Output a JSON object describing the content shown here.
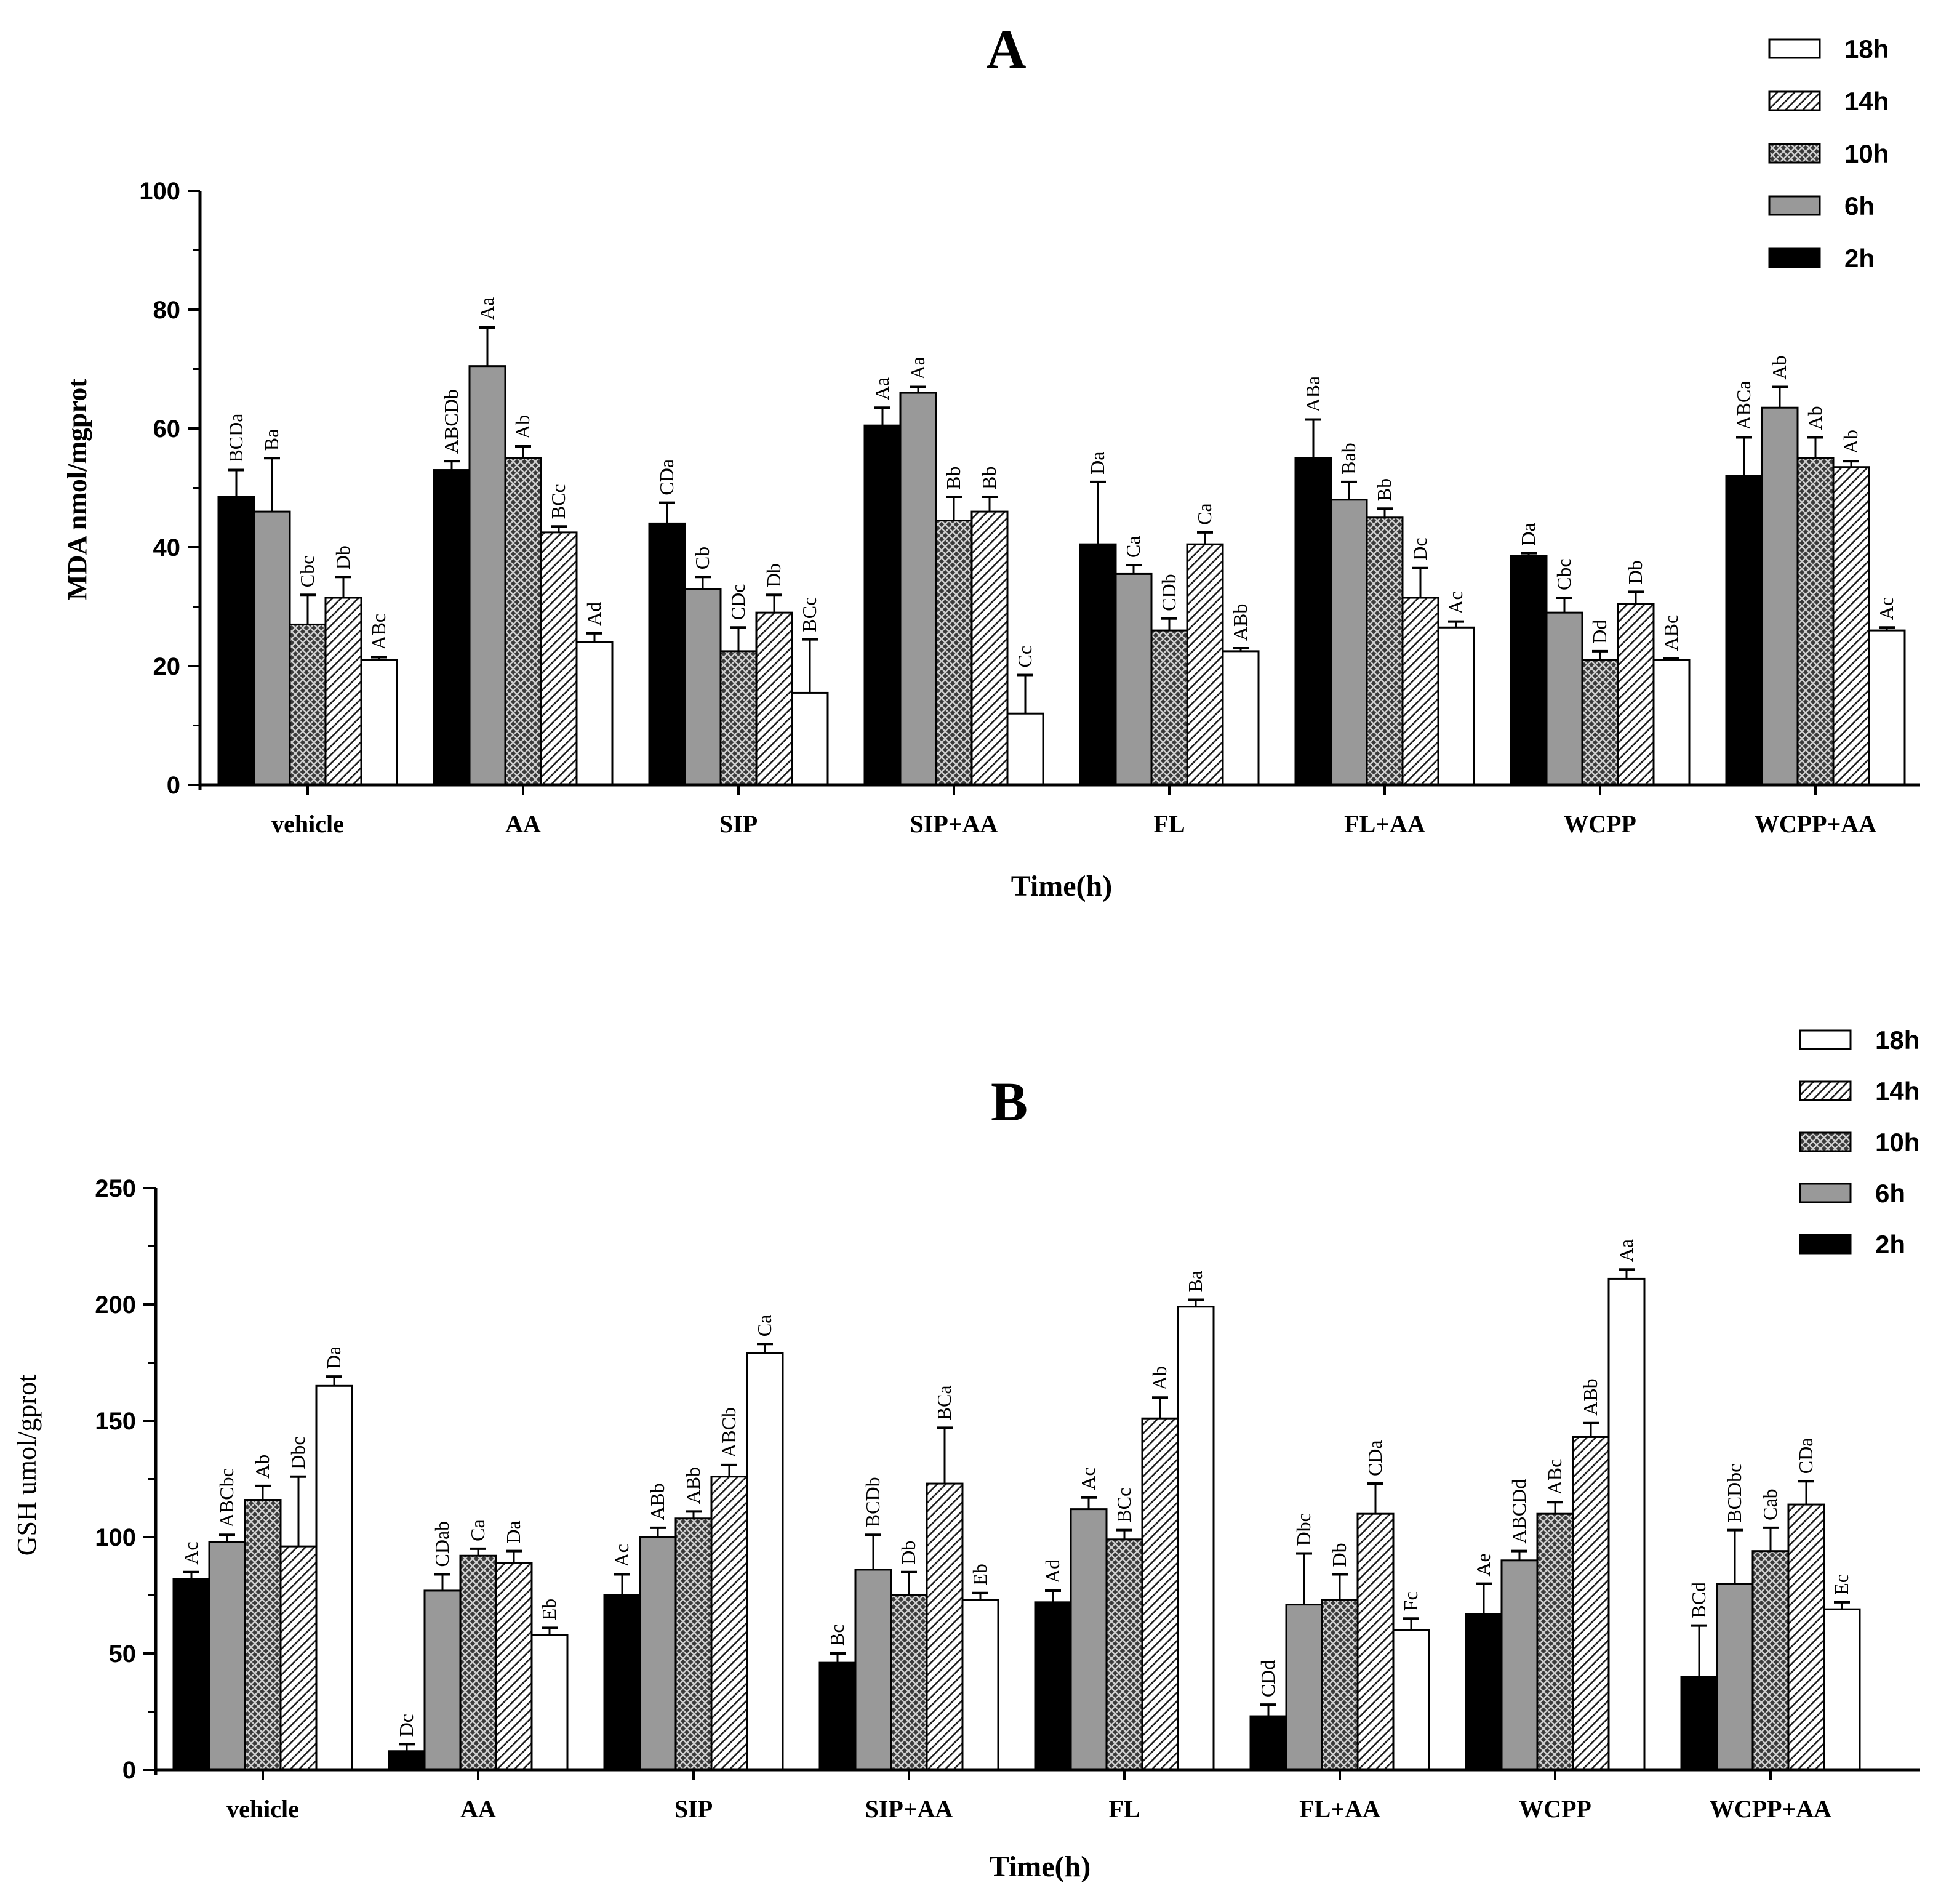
{
  "chart_data": [
    {
      "type": "bar",
      "title": "A",
      "xlabel": "Time(h)",
      "ylabel": "MDA nmol/mgprot",
      "ylim": [
        0,
        100
      ],
      "yticks": [
        0,
        20,
        40,
        60,
        80,
        100
      ],
      "categories": [
        "vehicle",
        "AA",
        "SIP",
        "SIP+AA",
        "FL",
        "FL+AA",
        "WCPP",
        "WCPP+AA"
      ],
      "legend_order": [
        "18h",
        "14h",
        "10h",
        "6h",
        "2h"
      ],
      "legend_position": "top-right",
      "series": [
        {
          "name": "2h",
          "pattern": "solid-black",
          "values": [
            48.5,
            53,
            44,
            60.5,
            40.5,
            55,
            38.5,
            52
          ],
          "errors": [
            4.5,
            1.5,
            3.5,
            3,
            10.5,
            6.5,
            0.5,
            6.5
          ],
          "labels": [
            "BCDa",
            "ABCDb",
            "CDa",
            "Aa",
            "Da",
            "ABa",
            "Da",
            "ABCa"
          ]
        },
        {
          "name": "6h",
          "pattern": "gray",
          "values": [
            46,
            70.5,
            33,
            66,
            35.5,
            48,
            29,
            63.5
          ],
          "errors": [
            9,
            6.5,
            2,
            1,
            1.5,
            3,
            2.5,
            3.5
          ],
          "labels": [
            "Ba",
            "Aa",
            "Cb",
            "Aa",
            "Ca",
            "Bab",
            "Cbc",
            "Ab"
          ]
        },
        {
          "name": "10h",
          "pattern": "crosshatch",
          "values": [
            27,
            55,
            22.5,
            44.5,
            26,
            45,
            21,
            55
          ],
          "errors": [
            5,
            2,
            4,
            4,
            2,
            1.5,
            1.5,
            3.5
          ],
          "labels": [
            "Cbc",
            "Ab",
            "CDc",
            "Bb",
            "CDb",
            "Bb",
            "Dd",
            "Ab"
          ]
        },
        {
          "name": "14h",
          "pattern": "diagonal",
          "values": [
            31.5,
            42.5,
            29,
            46,
            40.5,
            31.5,
            30.5,
            53.5
          ],
          "errors": [
            3.5,
            1,
            3,
            2.5,
            2,
            5,
            2,
            1
          ],
          "labels": [
            "Db",
            "BCc",
            "Db",
            "Bb",
            "Ca",
            "Dc",
            "Db",
            "Ab"
          ]
        },
        {
          "name": "18h",
          "pattern": "white",
          "values": [
            21,
            24,
            15.5,
            12,
            22.5,
            26.5,
            21,
            26
          ],
          "errors": [
            0.5,
            1.5,
            9,
            6.5,
            0.5,
            1,
            0.3,
            0.5
          ],
          "labels": [
            "ABc",
            "Ad",
            "BCc",
            "Cc",
            "ABb",
            "Ac",
            "ABc",
            "Ac"
          ]
        }
      ]
    },
    {
      "type": "bar",
      "title": "B",
      "xlabel": "Time(h)",
      "ylabel": "GSH umol/gprot",
      "ylim": [
        0,
        250
      ],
      "yticks": [
        0,
        50,
        100,
        150,
        200,
        250
      ],
      "categories": [
        "vehicle",
        "AA",
        "SIP",
        "SIP+AA",
        "FL",
        "FL+AA",
        "WCPP",
        "WCPP+AA"
      ],
      "legend_order": [
        "18h",
        "14h",
        "10h",
        "6h",
        "2h"
      ],
      "legend_position": "top-right",
      "series": [
        {
          "name": "2h",
          "pattern": "solid-black",
          "values": [
            82,
            8,
            75,
            46,
            72,
            23,
            67,
            40
          ],
          "errors": [
            3,
            3,
            9,
            4,
            5,
            5,
            13,
            22
          ],
          "labels": [
            "Ac",
            "Dc",
            "Ac",
            "Bc",
            "Ad",
            "CDd",
            "Ae",
            "BCd"
          ]
        },
        {
          "name": "6h",
          "pattern": "gray",
          "values": [
            98,
            77,
            100,
            86,
            112,
            71,
            90,
            80
          ],
          "errors": [
            3,
            7,
            4,
            15,
            5,
            22,
            4,
            23
          ],
          "labels": [
            "ABCbc",
            "CDab",
            "ABb",
            "BCDb",
            "Ac",
            "Dbc",
            "ABCDd",
            "BCDbc"
          ]
        },
        {
          "name": "10h",
          "pattern": "crosshatch",
          "values": [
            116,
            92,
            108,
            75,
            99,
            73,
            110,
            94
          ],
          "errors": [
            6,
            3,
            3,
            10,
            4,
            11,
            5,
            10
          ],
          "labels": [
            "Ab",
            "Ca",
            "ABb",
            "Db",
            "BCc",
            "Db",
            "ABc",
            "Cab"
          ]
        },
        {
          "name": "14h",
          "pattern": "diagonal",
          "values": [
            96,
            89,
            126,
            123,
            151,
            110,
            143,
            114
          ],
          "errors": [
            30,
            5,
            5,
            24,
            9,
            13,
            6,
            10
          ],
          "labels": [
            "Dbc",
            "Da",
            "ABCb",
            "BCa",
            "Ab",
            "CDa",
            "ABb",
            "CDa"
          ]
        },
        {
          "name": "18h",
          "pattern": "white",
          "values": [
            165,
            58,
            179,
            73,
            199,
            60,
            211,
            69
          ],
          "errors": [
            4,
            3,
            4,
            3,
            3,
            5,
            4,
            3
          ],
          "labels": [
            "Da",
            "Eb",
            "Ca",
            "Eb",
            "Ba",
            "Fc",
            "Aa",
            "Ec"
          ]
        }
      ]
    }
  ]
}
